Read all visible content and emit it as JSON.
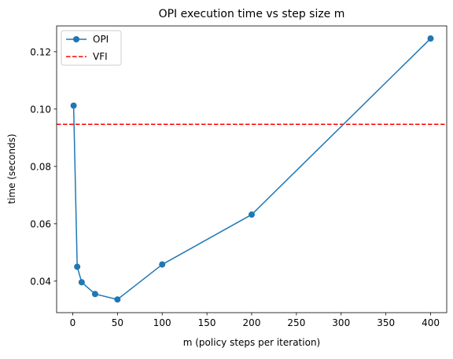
{
  "chart_data": {
    "type": "line",
    "title": "OPI execution time vs step size m",
    "xlabel": "m (policy steps per iteration)",
    "ylabel": "time (seconds)",
    "xlim": [
      -18,
      418
    ],
    "ylim": [
      0.029,
      0.129
    ],
    "xticks": [
      0,
      50,
      100,
      150,
      200,
      250,
      300,
      350,
      400
    ],
    "yticks": [
      0.04,
      0.06,
      0.08,
      0.1,
      0.12
    ],
    "ytick_labels": [
      "0.04",
      "0.06",
      "0.08",
      "0.10",
      "0.12"
    ],
    "grid": false,
    "legend_position": "upper-left",
    "series": [
      {
        "name": "OPI",
        "style": "solid-line-circle-markers",
        "color": "#1f77b4",
        "x": [
          1,
          5,
          10,
          25,
          50,
          100,
          200,
          400
        ],
        "y": [
          0.1012,
          0.045,
          0.0396,
          0.0355,
          0.0336,
          0.0458,
          0.0632,
          0.1246
        ]
      },
      {
        "name": "VFI",
        "style": "dashed-horizontal-line",
        "color": "#ff0000",
        "y": 0.0947
      }
    ]
  }
}
